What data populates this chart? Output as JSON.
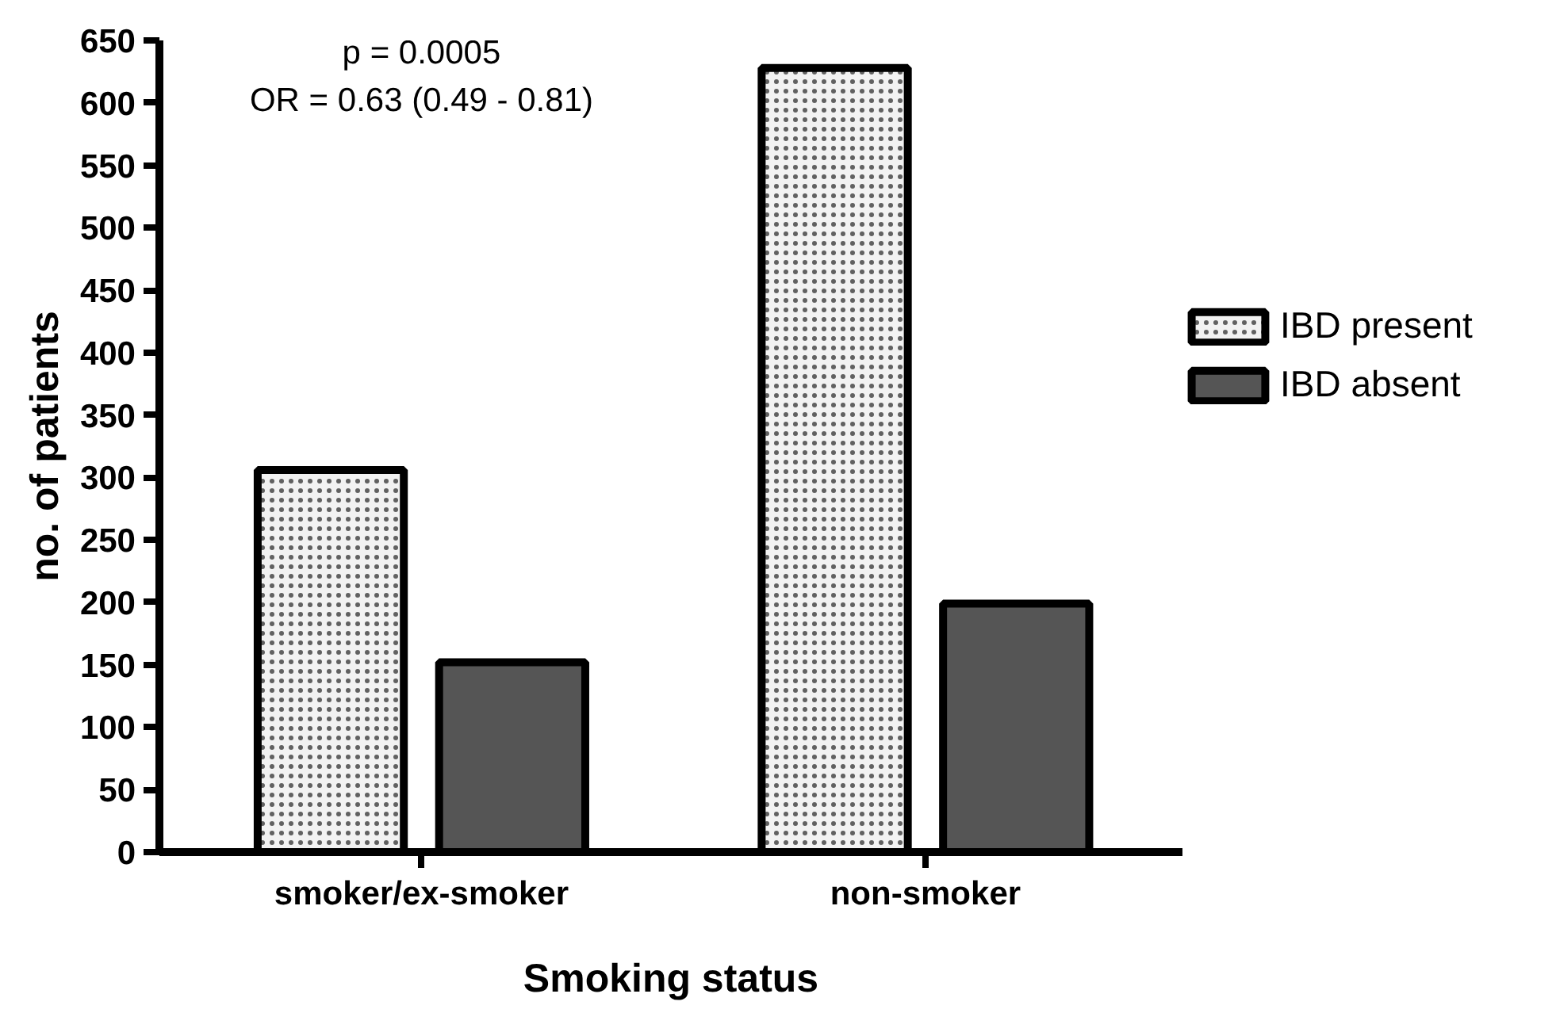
{
  "chart_data": {
    "type": "bar",
    "xlabel": "Smoking status",
    "ylabel": "no. of patients",
    "categories": [
      "smoker/ex-smoker",
      "non-smoker"
    ],
    "series": [
      {
        "name": "IBD present",
        "color": "#f2f2f2",
        "values": [
          306,
          628
        ]
      },
      {
        "name": "IBD absent",
        "color": "#555555",
        "values": [
          152,
          199
        ]
      }
    ],
    "ylim": [
      0,
      650
    ],
    "yticks": [
      0,
      50,
      100,
      150,
      200,
      250,
      300,
      350,
      400,
      450,
      500,
      550,
      600,
      650
    ],
    "grid": false,
    "legend": "right",
    "annotations": [
      "p = 0.0005",
      "OR = 0.63 (0.49 - 0.81)"
    ]
  }
}
